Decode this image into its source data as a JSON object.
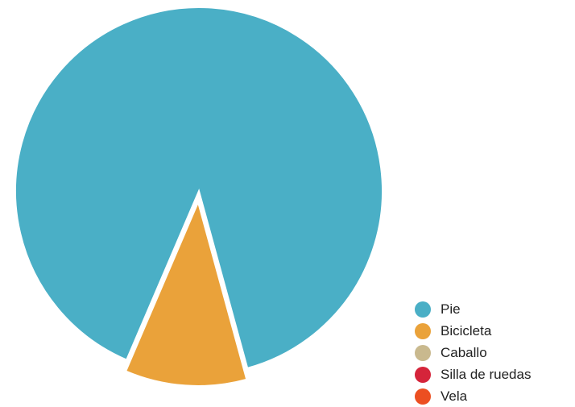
{
  "chart_data": {
    "type": "pie",
    "categories": [
      "Pie",
      "Bicicleta",
      "Caballo",
      "Silla de ruedas",
      "Vela"
    ],
    "values": [
      89.3,
      10.7,
      0,
      0,
      0
    ],
    "colors": [
      "#4aafc6",
      "#eaa23a",
      "#c9b98e",
      "#d5243a",
      "#ec4f21"
    ],
    "exploded": [
      "Bicicleta"
    ],
    "legend_position": "bottom-right"
  }
}
